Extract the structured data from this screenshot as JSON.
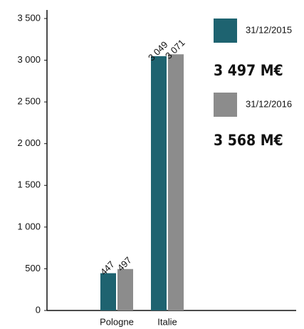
{
  "chart_data": {
    "type": "bar",
    "categories": [
      "Pologne",
      "Italie"
    ],
    "series": [
      {
        "name": "31/12/2015",
        "color": "#1e6370",
        "values": [
          447,
          3049
        ],
        "value_labels": [
          "447",
          "3 049"
        ]
      },
      {
        "name": "31/12/2016",
        "color": "#8c8c8c",
        "values": [
          497,
          3071
        ],
        "value_labels": [
          "497",
          "3 071"
        ]
      }
    ],
    "annotations": [
      "3 497 M€",
      "3 568 M€"
    ],
    "ylim": [
      0,
      3500
    ],
    "yticks": [
      0,
      500,
      {
        "value": 1000,
        "label": "1 000"
      },
      {
        "value": 1500,
        "label": "1 500"
      },
      {
        "value": 2000,
        "label": "2 000"
      },
      {
        "value": 2500,
        "label": "2 500"
      },
      {
        "value": 3000,
        "label": "3 000"
      },
      {
        "value": 3500,
        "label": "3 500"
      }
    ]
  }
}
